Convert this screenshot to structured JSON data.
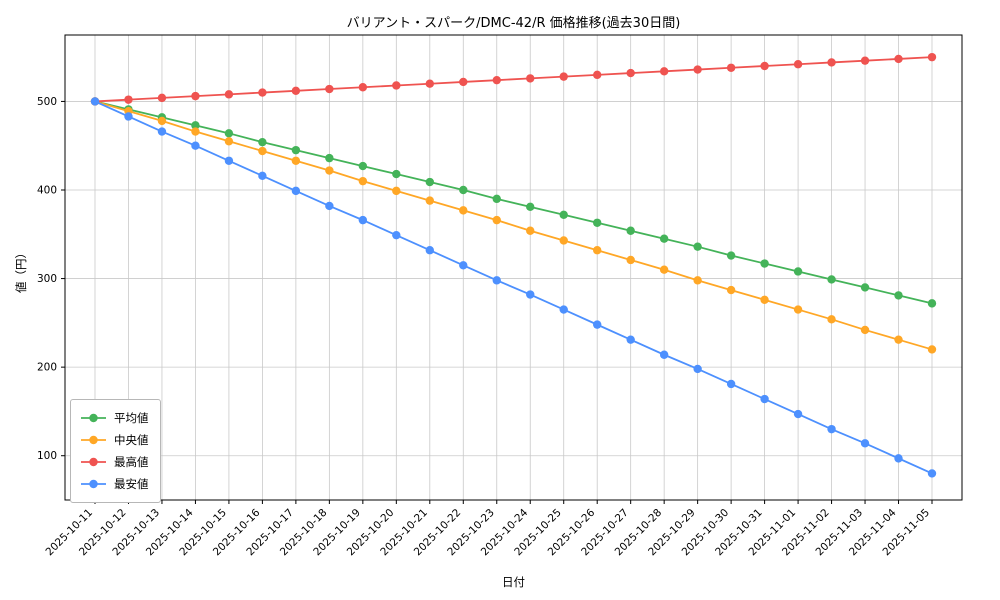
{
  "chart_data": {
    "type": "line",
    "title": "バリアント・スパーク/DMC-42/R 価格推移(過去30日間)",
    "xlabel": "日付",
    "ylabel": "値（円）",
    "ylim": [
      50,
      575
    ],
    "yticks": [
      100,
      200,
      300,
      400,
      500
    ],
    "grid": true,
    "legend_position": "lower left",
    "marker": "circle",
    "categories": [
      "2025-10-11",
      "2025-10-12",
      "2025-10-13",
      "2025-10-14",
      "2025-10-15",
      "2025-10-16",
      "2025-10-17",
      "2025-10-18",
      "2025-10-19",
      "2025-10-20",
      "2025-10-21",
      "2025-10-22",
      "2025-10-23",
      "2025-10-24",
      "2025-10-25",
      "2025-10-26",
      "2025-10-27",
      "2025-10-28",
      "2025-10-29",
      "2025-10-30",
      "2025-10-31",
      "2025-11-01",
      "2025-11-02",
      "2025-11-03",
      "2025-11-04",
      "2025-11-05"
    ],
    "series": [
      {
        "name": "平均値",
        "color": "#44b359",
        "values": [
          500,
          491,
          482,
          473,
          464,
          454,
          445,
          436,
          427,
          418,
          409,
          400,
          390,
          381,
          372,
          363,
          354,
          345,
          336,
          326,
          317,
          308,
          299,
          290,
          281,
          272
        ]
      },
      {
        "name": "中央値",
        "color": "#ffa726",
        "values": [
          500,
          489,
          478,
          466,
          455,
          444,
          433,
          422,
          410,
          399,
          388,
          377,
          366,
          354,
          343,
          332,
          321,
          310,
          298,
          287,
          276,
          265,
          254,
          242,
          231,
          220
        ]
      },
      {
        "name": "最高値",
        "color": "#ef5350",
        "values": [
          500,
          502,
          504,
          506,
          508,
          510,
          512,
          514,
          516,
          518,
          520,
          522,
          524,
          526,
          528,
          530,
          532,
          534,
          536,
          538,
          540,
          542,
          544,
          546,
          548,
          550
        ]
      },
      {
        "name": "最安値",
        "color": "#4d90fe",
        "values": [
          500,
          483,
          466,
          450,
          433,
          416,
          399,
          382,
          366,
          349,
          332,
          315,
          298,
          282,
          265,
          248,
          231,
          214,
          198,
          181,
          164,
          147,
          130,
          114,
          97,
          80
        ]
      }
    ]
  }
}
